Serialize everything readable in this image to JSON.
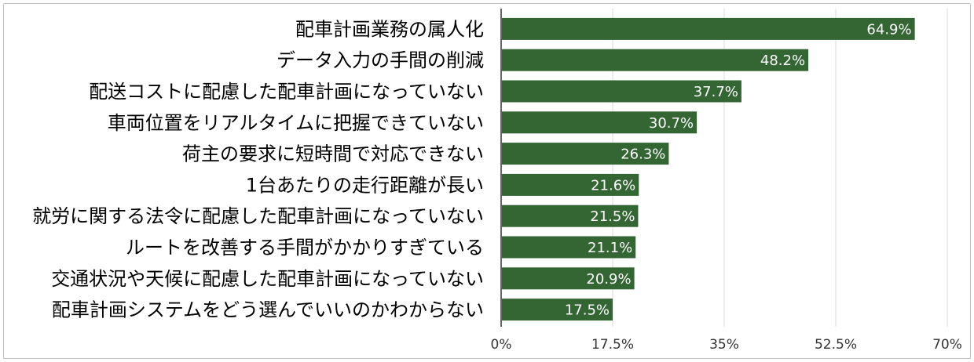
{
  "chart_data": {
    "type": "bar",
    "orientation": "horizontal",
    "categories": [
      "配車計画業務の属人化",
      "データ入力の手間の削減",
      "配送コストに配慮した配車計画になっていない",
      "車両位置をリアルタイムに把握できていない",
      "荷主の要求に短時間で対応できない",
      "1台あたりの走行距離が長い",
      "就労に関する法令に配慮した配車計画になっていない",
      "ルートを改善する手間がかかりすぎている",
      "交通状況や天候に配慮した配車計画になっていない",
      "配車計画システムをどう選んでいいのかわからない"
    ],
    "values": [
      64.9,
      48.2,
      37.7,
      30.7,
      26.3,
      21.6,
      21.5,
      21.1,
      20.9,
      17.5
    ],
    "value_labels": [
      "64.9%",
      "48.2%",
      "37.7%",
      "30.7%",
      "26.3%",
      "21.6%",
      "21.5%",
      "21.1%",
      "20.9%",
      "17.5%"
    ],
    "xlim": [
      0,
      70
    ],
    "x_ticks": [
      0,
      17.5,
      35,
      52.5,
      70
    ],
    "x_tick_labels": [
      "0%",
      "17.5%",
      "35%",
      "52.5%",
      "70%"
    ],
    "grid": true,
    "bar_color": "#336633",
    "grid_color": "#d9d9d9",
    "title": "",
    "xlabel": "",
    "ylabel": ""
  }
}
